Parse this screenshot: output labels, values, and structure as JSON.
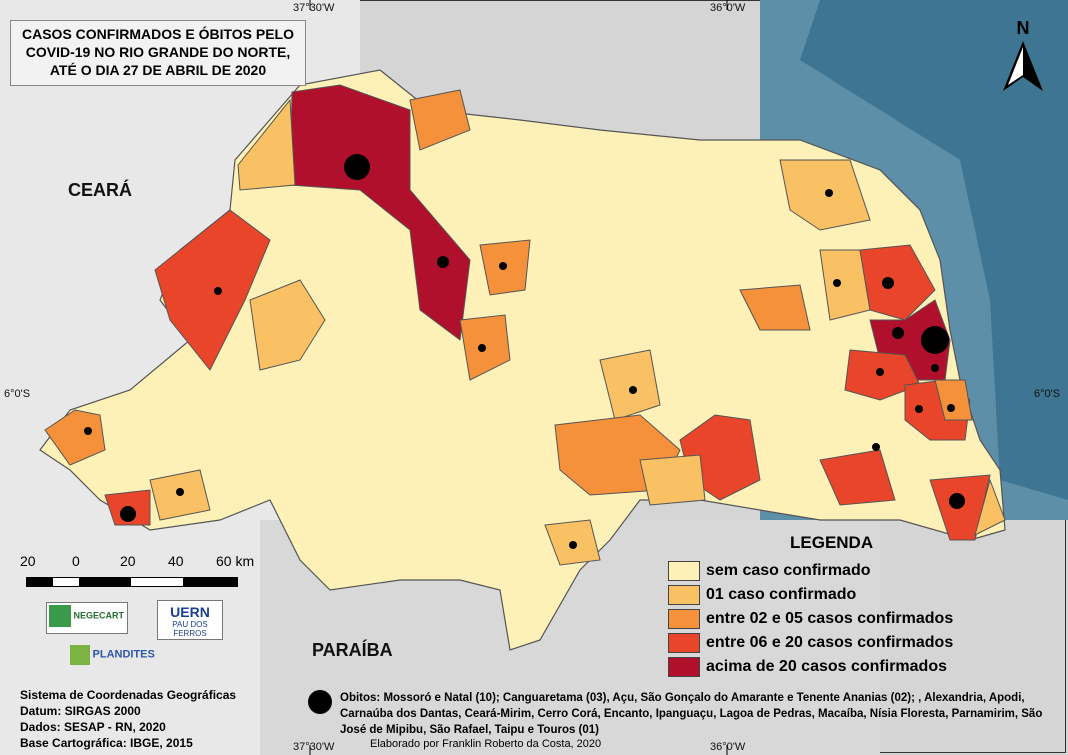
{
  "title": [
    "CASOS CONFIRMADOS E ÓBITOS PELO",
    "COVID-19 NO RIO GRANDE DO NORTE,",
    "ATÉ O DIA 27 DE ABRIL DE 2020"
  ],
  "graticule": {
    "lon_left": "37°30'W",
    "lon_right": "36°0'W",
    "lat": "6°0'S"
  },
  "labels": {
    "ceara": "CEARÁ",
    "paraiba": "PARAÍBA",
    "north": "N"
  },
  "legend": {
    "title": "LEGENDA",
    "items": [
      {
        "label": "sem caso confirmado",
        "color": "#fdf1b8"
      },
      {
        "label": "01 caso confirmado",
        "color": "#f9c064"
      },
      {
        "label": "entre 02 e 05 casos confirmados",
        "color": "#f5913b"
      },
      {
        "label": "entre 06 e 20 casos confirmados",
        "color": "#e8452a"
      },
      {
        "label": "acima de 20 casos confirmados",
        "color": "#b0102b"
      }
    ]
  },
  "scale": {
    "labels": [
      "20",
      "0",
      "20",
      "40",
      "60 km"
    ]
  },
  "logos": {
    "negecart": "NEGECART",
    "uern": "UERN",
    "uern_sub": "PAU DOS FERROS",
    "plandites": "PLANDITES"
  },
  "info": [
    "Sistema de Coordenadas Geográficas",
    "Datum: SIRGAS 2000",
    "Dados: SESAP - RN, 2020",
    "Base Cartográfica: IBGE, 2015"
  ],
  "obitos": "Obitos: Mossoró e Natal (10); Canguaretama (03), Açu, São Gonçalo do Amarante e Tenente Ananias  (02); , Alexandria, Apodi, Carnaúba dos Dantas, Ceará-Mirim, Cerro Corá, Encanto, Ipanguaçu, Lagoa de Pedras, Macaíba, Nísia Floresta, Parnamirim, São José de Mipibu, São Rafael, Taipu e Touros (01)",
  "credit": "Elaborado por Franklin Roberto da Costa, 2020"
}
